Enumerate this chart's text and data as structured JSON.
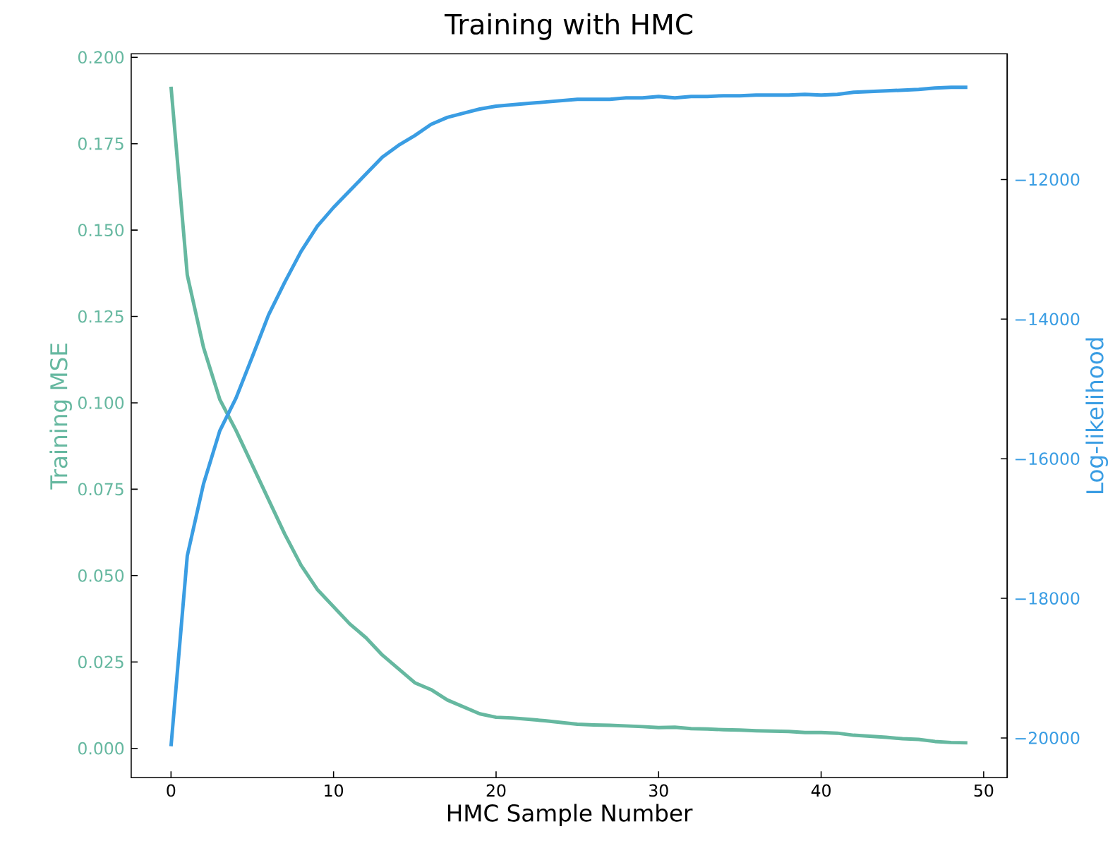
{
  "chart_data": {
    "type": "line",
    "title": "Training with HMC",
    "xlabel": "HMC Sample Number",
    "ylabel": "Training MSE",
    "y2label": "Log-likelihood",
    "x": [
      0,
      1,
      2,
      3,
      4,
      5,
      6,
      7,
      8,
      9,
      10,
      11,
      12,
      13,
      14,
      15,
      16,
      17,
      18,
      19,
      20,
      21,
      22,
      23,
      24,
      25,
      26,
      27,
      28,
      29,
      30,
      31,
      32,
      33,
      34,
      35,
      36,
      37,
      38,
      39,
      40,
      41,
      42,
      43,
      44,
      45,
      46,
      47,
      48,
      49
    ],
    "series": [
      {
        "color": "#66b8a0",
        "axis": "y",
        "values": [
          0.1915,
          0.137,
          0.116,
          0.101,
          0.092,
          0.082,
          0.072,
          0.062,
          0.053,
          0.046,
          0.041,
          0.036,
          0.032,
          0.027,
          0.023,
          0.019,
          0.017,
          0.014,
          0.012,
          0.01,
          0.009,
          0.0088,
          0.0084,
          0.008,
          0.0075,
          0.007,
          0.0068,
          0.0067,
          0.0065,
          0.0063,
          0.006,
          0.0061,
          0.0057,
          0.0056,
          0.0054,
          0.0053,
          0.0051,
          0.005,
          0.0049,
          0.0046,
          0.0046,
          0.0044,
          0.0038,
          0.0035,
          0.0032,
          0.0028,
          0.0026,
          0.002,
          0.0017,
          0.0016
        ]
      },
      {
        "color": "#3a9de3",
        "axis": "y2",
        "values": [
          -20120,
          -17390,
          -16360,
          -15600,
          -15130,
          -14540,
          -13940,
          -13470,
          -13030,
          -12670,
          -12400,
          -12160,
          -11920,
          -11680,
          -11510,
          -11370,
          -11210,
          -11110,
          -11050,
          -10990,
          -10950,
          -10930,
          -10910,
          -10890,
          -10870,
          -10850,
          -10850,
          -10850,
          -10830,
          -10830,
          -10810,
          -10830,
          -10810,
          -10810,
          -10800,
          -10800,
          -10790,
          -10790,
          -10790,
          -10780,
          -10790,
          -10780,
          -10750,
          -10740,
          -10730,
          -10720,
          -10710,
          -10690,
          -10680,
          -10680
        ]
      }
    ],
    "xlim": [
      -2.45,
      51.45
    ],
    "xticks": [
      0,
      10,
      20,
      30,
      40,
      50
    ],
    "ylim": [
      -0.0085,
      0.201
    ],
    "yticks": [
      {
        "value": 0,
        "label": "0.000"
      },
      {
        "value": 0.025,
        "label": "0.025"
      },
      {
        "value": 0.05,
        "label": "0.050"
      },
      {
        "value": 0.075,
        "label": "0.075"
      },
      {
        "value": 0.1,
        "label": "0.100"
      },
      {
        "value": 0.125,
        "label": "0.125"
      },
      {
        "value": 0.15,
        "label": "0.150"
      },
      {
        "value": 0.175,
        "label": "0.175"
      },
      {
        "value": 0.2,
        "label": "0.200"
      }
    ],
    "y2lim": [
      -20570,
      -10200
    ],
    "y2ticks": [
      {
        "value": -20000,
        "label": "−20000"
      },
      {
        "value": -18000,
        "label": "−18000"
      },
      {
        "value": -16000,
        "label": "−16000"
      },
      {
        "value": -14000,
        "label": "−14000"
      },
      {
        "value": -12000,
        "label": "−12000"
      }
    ]
  }
}
